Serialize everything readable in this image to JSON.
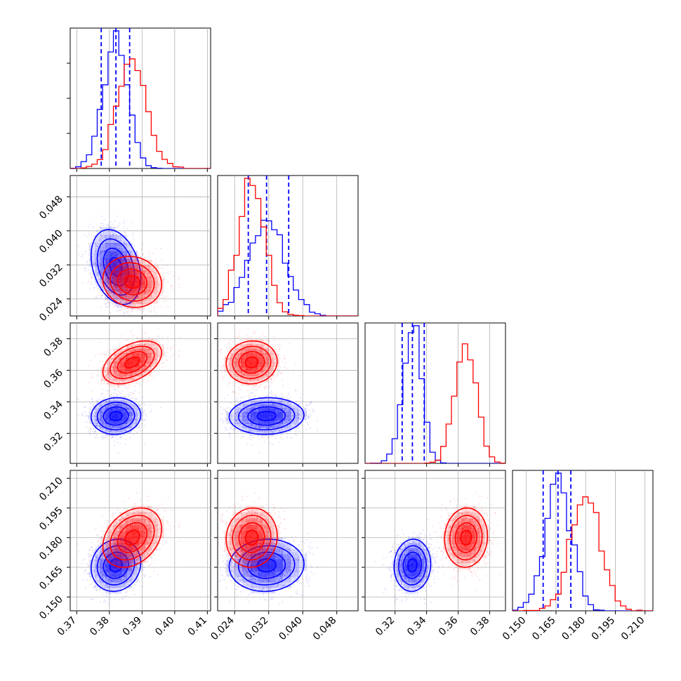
{
  "chart_data": {
    "type": "corner",
    "grid": true,
    "colors": {
      "blue": "#0000ff",
      "red": "#ff0000"
    },
    "parameters": [
      {
        "index": 0,
        "range": [
          0.368,
          0.411
        ],
        "ticks": [
          0.37,
          0.38,
          0.39,
          0.4,
          0.41
        ],
        "tick_labels": [
          "0.37",
          "0.38",
          "0.39",
          "0.40",
          "0.41"
        ]
      },
      {
        "index": 1,
        "range": [
          0.02,
          0.053
        ],
        "ticks": [
          0.024,
          0.032,
          0.04,
          0.048
        ],
        "tick_labels": [
          "0.024",
          "0.032",
          "0.040",
          "0.048"
        ]
      },
      {
        "index": 2,
        "range": [
          0.301,
          0.39
        ],
        "ticks": [
          0.32,
          0.34,
          0.36,
          0.38
        ],
        "tick_labels": [
          "0.32",
          "0.34",
          "0.36",
          "0.38"
        ]
      },
      {
        "index": 3,
        "range": [
          0.143,
          0.214
        ],
        "ticks": [
          0.15,
          0.165,
          0.18,
          0.195,
          0.21
        ],
        "tick_labels": [
          "0.150",
          "0.165",
          "0.180",
          "0.195",
          "0.210"
        ]
      }
    ],
    "series": [
      {
        "color": "#0000ff",
        "mean": [
          0.382,
          0.0315,
          0.331,
          0.166
        ],
        "sd": [
          0.0038,
          0.0044,
          0.0058,
          0.0066
        ],
        "corr": {
          "0-1": -0.3,
          "0-2": 0.05,
          "0-3": 0.1,
          "1-2": 0.05,
          "1-3": 0.05,
          "2-3": 0.05
        },
        "quantiles": [
          [
            0.3775,
            0.382,
            0.3862
          ],
          [
            0.0272,
            0.0315,
            0.0367
          ],
          [
            0.3245,
            0.331,
            0.3385
          ],
          [
            0.1585,
            0.166,
            0.1725
          ]
        ]
      },
      {
        "color": "#ff0000",
        "mean": [
          0.387,
          0.028,
          0.365,
          0.18
        ],
        "sd": [
          0.0045,
          0.003,
          0.0068,
          0.0075
        ],
        "corr": {
          "0-1": -0.1,
          "0-2": 0.45,
          "0-3": 0.3,
          "1-2": 0.05,
          "1-3": 0.05,
          "2-3": 0.05
        }
      }
    ]
  }
}
